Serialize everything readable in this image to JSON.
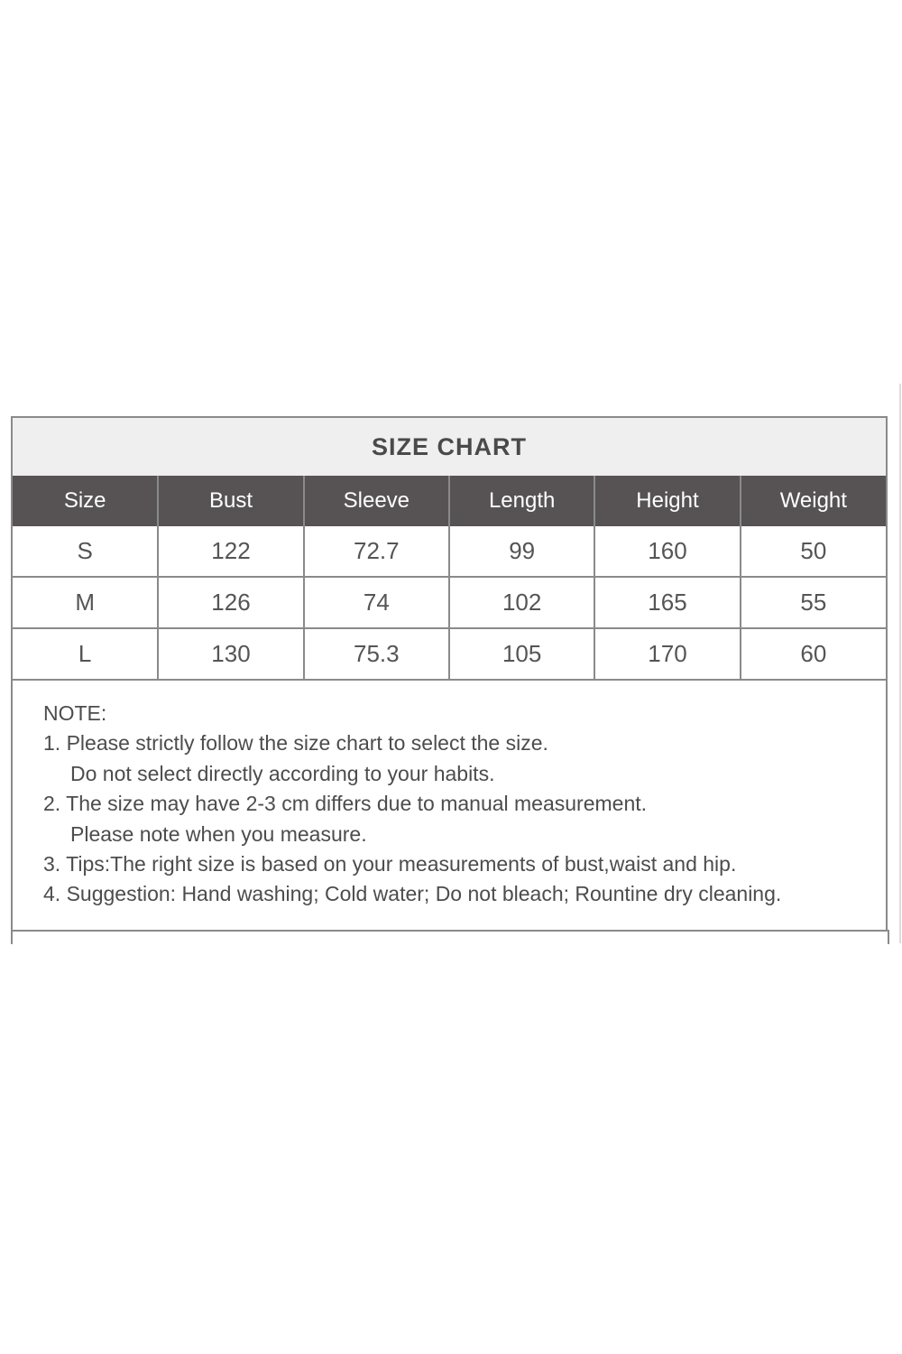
{
  "title": "SIZE CHART",
  "columns": [
    "Size",
    "Bust",
    "Sleeve",
    "Length",
    "Height",
    "Weight"
  ],
  "rows": [
    [
      "S",
      "122",
      "72.7",
      "99",
      "160",
      "50"
    ],
    [
      "M",
      "126",
      "74",
      "102",
      "165",
      "55"
    ],
    [
      "L",
      "130",
      "75.3",
      "105",
      "170",
      "60"
    ]
  ],
  "note": {
    "heading": "NOTE:",
    "lines": [
      "1. Please strictly follow the size chart to select the size.",
      "Do not select directly according to your habits.",
      "2. The size may have 2-3 cm differs due to manual measurement.",
      "Please note when you measure.",
      "3. Tips:The right size is based on your measurements of bust,waist and hip.",
      "4. Suggestion: Hand washing; Cold water; Do not bleach; Rountine dry cleaning."
    ]
  }
}
